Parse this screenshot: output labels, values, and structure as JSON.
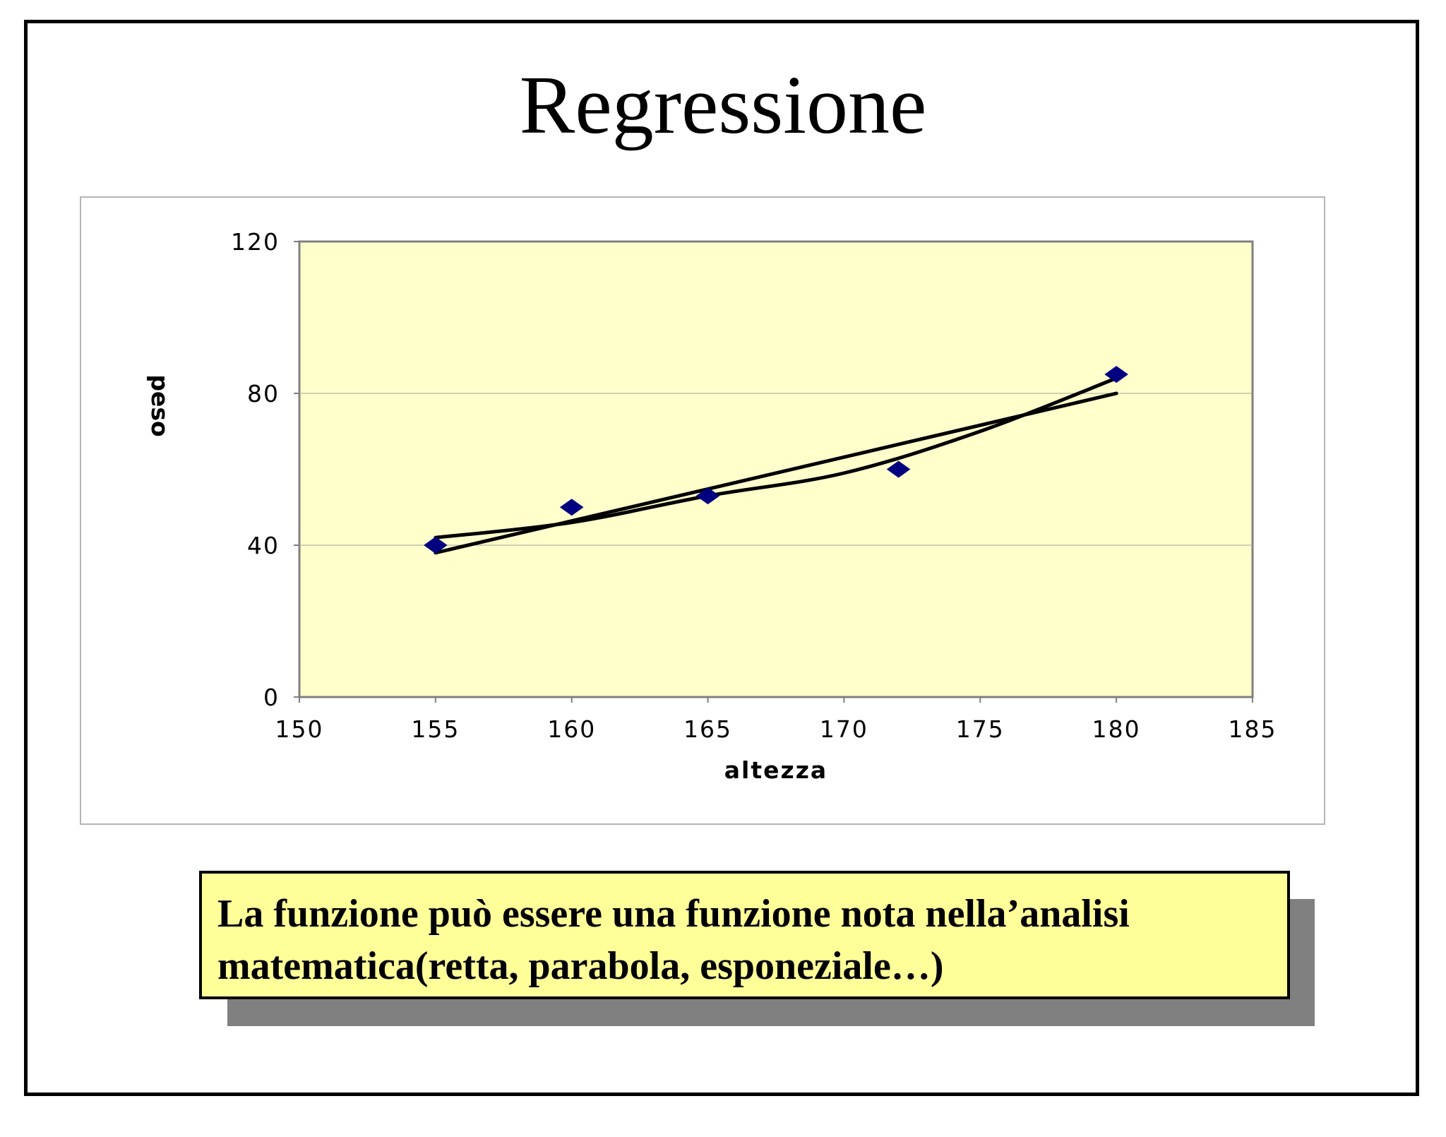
{
  "slide": {
    "title": "Regressione",
    "note_lines": [
      "La funzione può essere una funzione nota nella’analisi",
      "matematica(retta, parabola, esponeziale…)"
    ],
    "colors": {
      "plot_background": "#ffffcc",
      "marker": "#000080",
      "line": "#000000",
      "note_background": "#ffff99",
      "note_shadow": "#808080"
    }
  },
  "chart_data": {
    "type": "scatter",
    "title": "",
    "xlabel": "altezza",
    "ylabel": "peso",
    "xlim": [
      150,
      185
    ],
    "ylim": [
      0,
      120
    ],
    "xticks": [
      "150",
      "155",
      "160",
      "165",
      "170",
      "175",
      "180",
      "185"
    ],
    "yticks": [
      "0",
      "40",
      "80",
      "120"
    ],
    "grid": "horizontal",
    "legend": "none",
    "points": [
      {
        "x": 155,
        "y": 40
      },
      {
        "x": 160,
        "y": 50
      },
      {
        "x": 165,
        "y": 53
      },
      {
        "x": 172,
        "y": 60
      },
      {
        "x": 180,
        "y": 85
      }
    ],
    "trendlines": [
      {
        "type": "linear",
        "points": [
          {
            "x": 155,
            "y": 38
          },
          {
            "x": 180,
            "y": 80
          }
        ]
      },
      {
        "type": "curve",
        "points": [
          {
            "x": 155,
            "y": 42
          },
          {
            "x": 160,
            "y": 46
          },
          {
            "x": 165,
            "y": 53
          },
          {
            "x": 170,
            "y": 59
          },
          {
            "x": 175,
            "y": 70
          },
          {
            "x": 180,
            "y": 84
          }
        ]
      }
    ]
  }
}
